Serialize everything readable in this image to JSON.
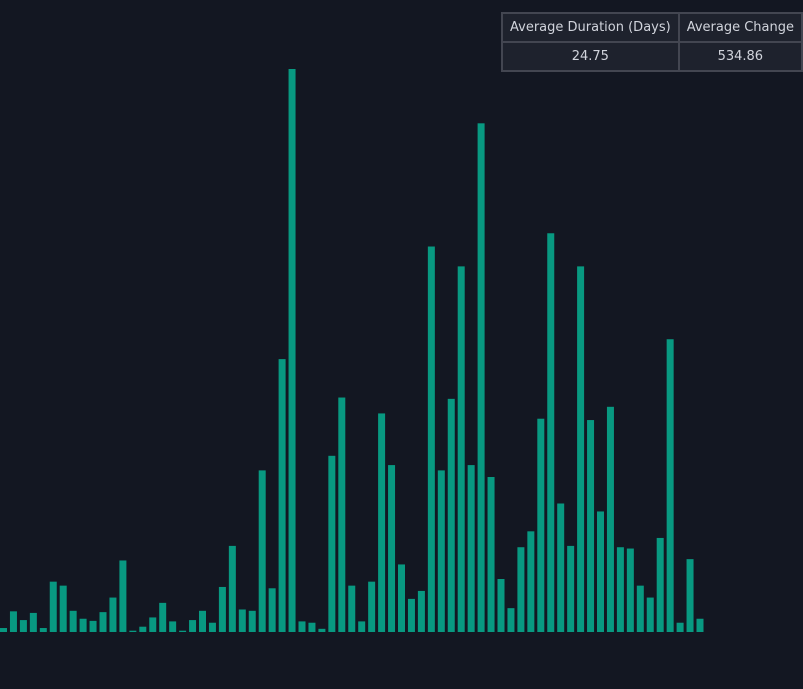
{
  "colors": {
    "background": "#131722",
    "bar": "#089981",
    "table_background": "#1e222d",
    "table_border": "#434651",
    "table_text": "#d1d4dc"
  },
  "stats_table": {
    "headers": [
      "Average Duration (Days)",
      "Average Change"
    ],
    "values": [
      "24.75",
      "534.86"
    ]
  },
  "chart_data": {
    "type": "bar",
    "title": "",
    "xlabel": "",
    "ylabel": "",
    "grid": false,
    "legend": "none",
    "ylim": [
      0,
      2125
    ],
    "values": [
      15,
      78,
      45,
      72,
      15,
      190,
      175,
      80,
      50,
      42,
      75,
      130,
      270,
      5,
      20,
      55,
      110,
      40,
      5,
      45,
      80,
      35,
      170,
      325,
      85,
      80,
      610,
      165,
      1030,
      2125,
      40,
      35,
      12,
      665,
      885,
      175,
      40,
      190,
      825,
      630,
      255,
      125,
      155,
      1455,
      610,
      880,
      1380,
      630,
      1920,
      585,
      200,
      90,
      320,
      380,
      805,
      1505,
      485,
      325,
      1380,
      800,
      455,
      850,
      320,
      315,
      175,
      130,
      355,
      1105,
      35,
      275,
      50
    ]
  }
}
